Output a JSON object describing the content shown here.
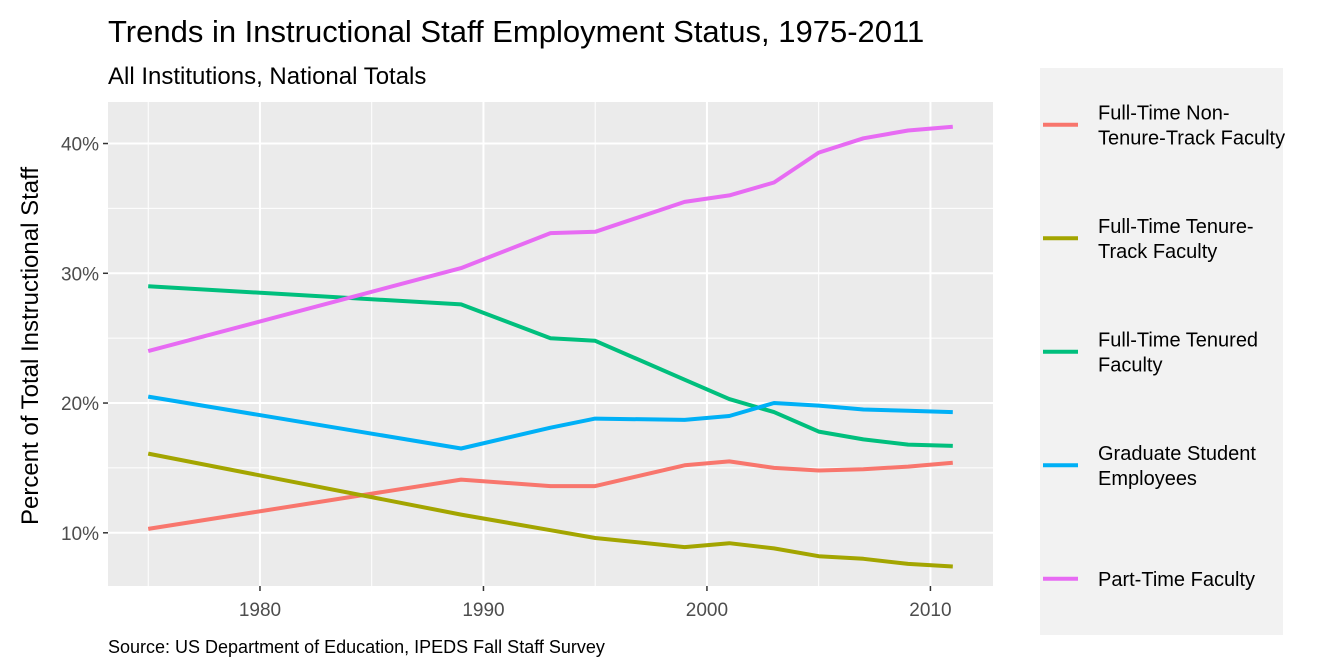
{
  "title": "Trends in Instructional Staff Employment Status, 1975-2011",
  "subtitle": "All Institutions, National Totals",
  "caption": "Source: US Department of Education, IPEDS Fall Staff Survey",
  "chart_data": {
    "type": "line",
    "title": "Trends in Instructional Staff Employment Status, 1975-2011",
    "subtitle": "All Institutions, National Totals",
    "xlabel": "",
    "ylabel": "Percent of Total Instructional Staff",
    "xlim": [
      1973.2,
      2012.8
    ],
    "ylim": [
      5.9,
      43.2
    ],
    "x_ticks": [
      1980,
      1990,
      2000,
      2010
    ],
    "y_ticks": [
      10,
      20,
      30,
      40
    ],
    "y_tick_labels": [
      "10%",
      "20%",
      "30%",
      "40%"
    ],
    "grid": true,
    "legend_position": "right",
    "x": [
      1975,
      1989,
      1993,
      1995,
      1999,
      2001,
      2003,
      2005,
      2007,
      2009,
      2011
    ],
    "series": [
      {
        "name": "Full-Time Non-Tenure-Track Faculty",
        "legend_lines": [
          "Full-Time Non-",
          "Tenure-Track Faculty"
        ],
        "color": "#F8766D",
        "values": [
          10.3,
          14.1,
          13.6,
          13.6,
          15.2,
          15.5,
          15.0,
          14.8,
          14.9,
          15.1,
          15.4
        ]
      },
      {
        "name": "Full-Time Tenure-Track Faculty",
        "legend_lines": [
          "Full-Time Tenure-",
          "Track Faculty"
        ],
        "color": "#A3A500",
        "values": [
          16.1,
          11.4,
          10.2,
          9.6,
          8.9,
          9.2,
          8.8,
          8.2,
          8.0,
          7.6,
          7.4
        ]
      },
      {
        "name": "Full-Time Tenured Faculty",
        "legend_lines": [
          "Full-Time Tenured",
          "Faculty"
        ],
        "color": "#00BF7D",
        "values": [
          29.0,
          27.6,
          25.0,
          24.8,
          21.8,
          20.3,
          19.3,
          17.8,
          17.2,
          16.8,
          16.7
        ]
      },
      {
        "name": "Graduate Student Employees",
        "legend_lines": [
          "Graduate Student",
          "Employees"
        ],
        "color": "#00B0F6",
        "values": [
          20.5,
          16.5,
          18.1,
          18.8,
          18.7,
          19.0,
          20.0,
          19.8,
          19.5,
          19.4,
          19.3
        ]
      },
      {
        "name": "Part-Time Faculty",
        "legend_lines": [
          "Part-Time Faculty"
        ],
        "color": "#E76BF3",
        "values": [
          24.0,
          30.4,
          33.1,
          33.2,
          35.5,
          36.0,
          37.0,
          39.3,
          40.4,
          41.0,
          41.3
        ]
      }
    ]
  },
  "colors": {
    "panel_background": "#EBEBEB",
    "grid_major": "#FFFFFF",
    "legend_background": "#F2F2F2",
    "tick_text": "#4D4D4D"
  }
}
